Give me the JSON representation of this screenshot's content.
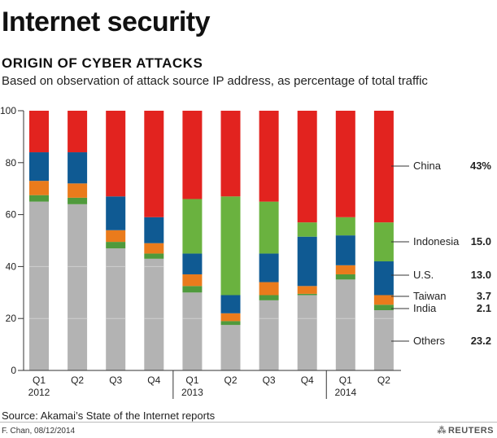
{
  "header": {
    "title": "Internet security",
    "subtitle": "ORIGIN OF CYBER ATTACKS",
    "description": "Based on observation of attack source IP address, as percentage of total traffic"
  },
  "footer": {
    "source": "Source: Akamai’s State of the Internet reports",
    "credit": "F. Chan, 08/12/2014",
    "brand": "REUTERS"
  },
  "colors": {
    "Others": "#b3b3b3",
    "India": "#4f9a3c",
    "Taiwan": "#ea7b1c",
    "U.S.": "#0f5a93",
    "Indonesia": "#6ab23f",
    "China": "#e2231f"
  },
  "chart_data": {
    "type": "bar",
    "stacked": true,
    "title": "ORIGIN OF CYBER ATTACKS",
    "xlabel": "",
    "ylabel": "",
    "ylim": [
      0,
      100
    ],
    "yticks": [
      0,
      20,
      40,
      60,
      80,
      100
    ],
    "grid": false,
    "categories": [
      "Q1 2012",
      "Q2",
      "Q3",
      "Q4",
      "Q1 2013",
      "Q2",
      "Q3",
      "Q4",
      "Q1 2014",
      "Q2"
    ],
    "tick_labels": [
      [
        "Q1",
        "2012"
      ],
      [
        "Q2"
      ],
      [
        "Q3"
      ],
      [
        "Q4"
      ],
      [
        "Q1",
        "2013"
      ],
      [
        "Q2"
      ],
      [
        "Q3"
      ],
      [
        "Q4"
      ],
      [
        "Q1",
        "2014"
      ],
      [
        "Q2"
      ]
    ],
    "series": [
      {
        "name": "Others",
        "values": [
          65,
          64,
          47,
          43,
          30,
          17.5,
          27,
          29,
          35,
          23.2
        ]
      },
      {
        "name": "India",
        "values": [
          2.5,
          2.5,
          2.5,
          2,
          2.5,
          1.5,
          2,
          0.5,
          2,
          2.1
        ]
      },
      {
        "name": "Taiwan",
        "values": [
          5.5,
          5.5,
          4.5,
          4,
          4.5,
          3,
          5,
          3,
          3.5,
          3.7
        ]
      },
      {
        "name": "U.S.",
        "values": [
          11,
          12,
          13,
          10,
          8,
          7,
          11,
          19,
          11.5,
          13.0
        ]
      },
      {
        "name": "Indonesia",
        "values": [
          0,
          0,
          0,
          0,
          21,
          38,
          20,
          5.5,
          7,
          15.0
        ]
      },
      {
        "name": "China",
        "values": [
          16,
          16,
          33,
          41,
          34,
          33,
          35,
          43,
          41,
          43
        ]
      }
    ],
    "legend": {
      "placement": "right",
      "entries": [
        {
          "name": "China",
          "label": "43%"
        },
        {
          "name": "Indonesia",
          "label": "15.0"
        },
        {
          "name": "U.S.",
          "label": "13.0"
        },
        {
          "name": "Taiwan",
          "label": "3.7"
        },
        {
          "name": "India",
          "label": "2.1"
        },
        {
          "name": "Others",
          "label": "23.2"
        }
      ]
    }
  }
}
